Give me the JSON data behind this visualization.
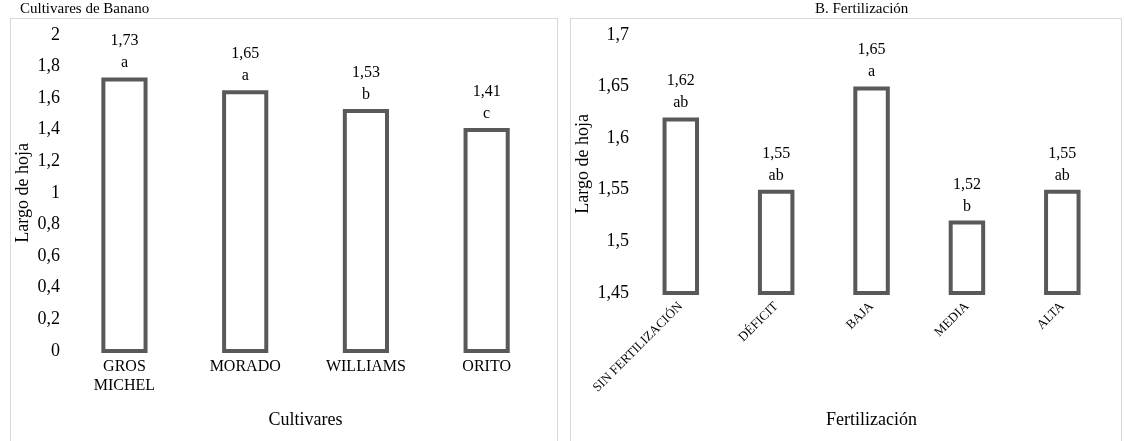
{
  "chart_data": [
    {
      "type": "bar",
      "title": "Cultivares de Banano",
      "xlabel": "Cultivares",
      "ylabel": "Largo de hoja",
      "categories": [
        "GROS MICHEL",
        "MORADO",
        "WILLIAMS",
        "ORITO"
      ],
      "values": [
        1.73,
        1.65,
        1.53,
        1.41
      ],
      "value_labels": [
        "1,73",
        "1,65",
        "1,53",
        "1,41"
      ],
      "color": "#595959",
      "ylim": [
        0,
        2
      ],
      "yticks": [
        0,
        {
          "value": 0.2,
          "label": "0,2"
        },
        {
          "value": 0.4,
          "label": "0,4"
        },
        {
          "value": 0.6,
          "label": "0,6"
        },
        {
          "value": 0.8,
          "label": "0,8"
        },
        1,
        {
          "value": 1.2,
          "label": "1,2"
        },
        {
          "value": 1.4,
          "label": "1,4"
        },
        {
          "value": 1.6,
          "label": "1,6"
        },
        {
          "value": 1.8,
          "label": "1,8"
        },
        2
      ],
      "grid": false,
      "legend": false,
      "annotations": [
        {
          "text": "a",
          "x": "GROS MICHEL",
          "y": 1.73
        },
        {
          "text": "a",
          "x": "MORADO",
          "y": 1.65
        },
        {
          "text": "b",
          "x": "WILLIAMS",
          "y": 1.53
        },
        {
          "text": "c",
          "x": "ORITO",
          "y": 1.41
        }
      ]
    },
    {
      "type": "bar",
      "title": "B. Fertilización",
      "xlabel": "Fertilización",
      "ylabel": "Largo de hoja",
      "categories": [
        "SIN FERTILIZACIÓN",
        "DÉFICIT",
        "BAJA",
        "MEDIA",
        "ALTA"
      ],
      "values": [
        1.62,
        1.55,
        1.65,
        1.52,
        1.55
      ],
      "value_labels": [
        "1,62",
        "1,55",
        "1,65",
        "1,52",
        "1,55"
      ],
      "color": "#595959",
      "ylim": [
        1.45,
        1.7
      ],
      "yticks": [
        {
          "value": 1.45,
          "label": "1,45"
        },
        {
          "value": 1.5,
          "label": "1,5"
        },
        {
          "value": 1.55,
          "label": "1,55"
        },
        {
          "value": 1.6,
          "label": "1,6"
        },
        {
          "value": 1.65,
          "label": "1,65"
        },
        {
          "value": 1.7,
          "label": "1,7"
        }
      ],
      "grid": false,
      "legend": false,
      "annotations": [
        {
          "text": "ab",
          "x": "SIN FERTILIZACIÓN",
          "y": 1.62
        },
        {
          "text": "ab",
          "x": "DÉFICIT",
          "y": 1.55
        },
        {
          "text": "a",
          "x": "BAJA",
          "y": 1.65
        },
        {
          "text": "b",
          "x": "MEDIA",
          "y": 1.52
        },
        {
          "text": "ab",
          "x": "ALTA",
          "y": 1.55
        }
      ]
    }
  ]
}
